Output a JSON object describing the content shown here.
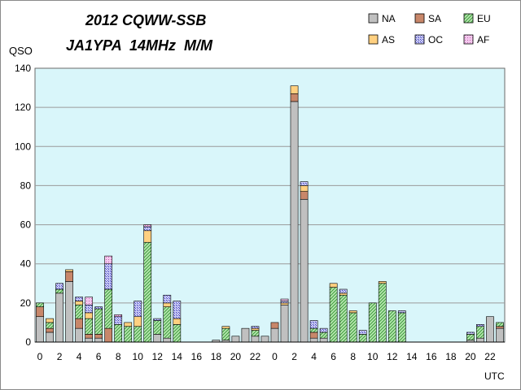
{
  "chart_data": {
    "type": "bar",
    "stacked": true,
    "title": "2012 CQWW-SSB",
    "subtitle": "JA1YPA  14MHz  M/M",
    "ylabel": "QSO",
    "xlabel": "UTC",
    "ylim": [
      0,
      140
    ],
    "yticks": [
      0,
      20,
      40,
      60,
      80,
      100,
      120,
      140
    ],
    "grid": true,
    "legend": "top-right",
    "x": [
      "0",
      "1",
      "2",
      "3",
      "4",
      "5",
      "6",
      "7",
      "8",
      "9",
      "10",
      "11",
      "12",
      "13",
      "14",
      "15",
      "16",
      "17",
      "18",
      "19",
      "20",
      "21",
      "22",
      "23",
      "0",
      "1",
      "2",
      "3",
      "4",
      "5",
      "6",
      "7",
      "8",
      "9",
      "10",
      "11",
      "12",
      "13",
      "14",
      "15",
      "16",
      "17",
      "18",
      "19",
      "20",
      "21",
      "22",
      "23"
    ],
    "xtick_labels": [
      "0",
      "",
      "2",
      "",
      "4",
      "",
      "6",
      "",
      "8",
      "",
      "10",
      "",
      "12",
      "",
      "14",
      "",
      "16",
      "",
      "18",
      "",
      "20",
      "",
      "22",
      "",
      "0",
      "",
      "2",
      "",
      "4",
      "",
      "6",
      "",
      "8",
      "",
      "10",
      "",
      "12",
      "",
      "14",
      "",
      "16",
      "",
      "18",
      "",
      "20",
      "",
      "22",
      ""
    ],
    "series": [
      {
        "name": "NA",
        "color": "#c0c0c0",
        "values": [
          13,
          5,
          25,
          31,
          7,
          2,
          2,
          0,
          0,
          0,
          0,
          0,
          4,
          2,
          0,
          0,
          0,
          0,
          1,
          1,
          3,
          7,
          3,
          3,
          7,
          19,
          123,
          73,
          2,
          2,
          0,
          0,
          0,
          0,
          0,
          0,
          0,
          0,
          0,
          0,
          0,
          0,
          0,
          0,
          1,
          2,
          13,
          7
        ]
      },
      {
        "name": "SA",
        "color": "#c8876a",
        "values": [
          5,
          2,
          0,
          5,
          5,
          2,
          2,
          7,
          0,
          0,
          0,
          0,
          0,
          0,
          0,
          0,
          0,
          0,
          0,
          0,
          0,
          0,
          0,
          0,
          3,
          0,
          4,
          4,
          3,
          0,
          0,
          0,
          0,
          0,
          0,
          0,
          0,
          0,
          0,
          0,
          0,
          0,
          0,
          0,
          0,
          0,
          0,
          1
        ]
      },
      {
        "name": "EU",
        "color": "#8fd08f",
        "values": [
          2,
          3,
          2,
          0,
          7,
          8,
          13,
          20,
          9,
          8,
          8,
          51,
          7,
          16,
          9,
          0,
          0,
          0,
          0,
          6,
          0,
          0,
          3,
          0,
          0,
          0,
          0,
          0,
          2,
          3,
          28,
          24,
          15,
          4,
          20,
          30,
          16,
          15,
          0,
          0,
          0,
          0,
          0,
          0,
          3,
          6,
          0,
          2
        ]
      },
      {
        "name": "AS",
        "color": "#ffd080",
        "values": [
          0,
          2,
          0,
          1,
          2,
          3,
          0,
          0,
          0,
          2,
          5,
          6,
          0,
          2,
          3,
          0,
          0,
          0,
          0,
          1,
          0,
          0,
          1,
          0,
          0,
          1,
          4,
          3,
          0,
          0,
          2,
          1,
          1,
          0,
          0,
          1,
          0,
          0,
          0,
          0,
          0,
          0,
          0,
          0,
          0,
          0,
          0,
          0
        ]
      },
      {
        "name": "OC",
        "color": "#9a9aea",
        "values": [
          0,
          0,
          3,
          0,
          2,
          4,
          1,
          13,
          4,
          0,
          8,
          2,
          1,
          4,
          9,
          0,
          0,
          0,
          0,
          0,
          0,
          0,
          1,
          0,
          0,
          1,
          0,
          2,
          4,
          2,
          0,
          2,
          0,
          2,
          0,
          0,
          0,
          1,
          0,
          0,
          0,
          0,
          0,
          0,
          1,
          1,
          0,
          0
        ]
      },
      {
        "name": "AF",
        "color": "#f0b0e6",
        "values": [
          0,
          0,
          0,
          0,
          0,
          4,
          0,
          4,
          1,
          0,
          0,
          1,
          0,
          0,
          0,
          0,
          0,
          0,
          0,
          0,
          0,
          0,
          0,
          0,
          0,
          1,
          0,
          0,
          0,
          0,
          0,
          0,
          0,
          0,
          0,
          0,
          0,
          0,
          0,
          0,
          0,
          0,
          0,
          0,
          0,
          0,
          0,
          0
        ]
      }
    ]
  }
}
